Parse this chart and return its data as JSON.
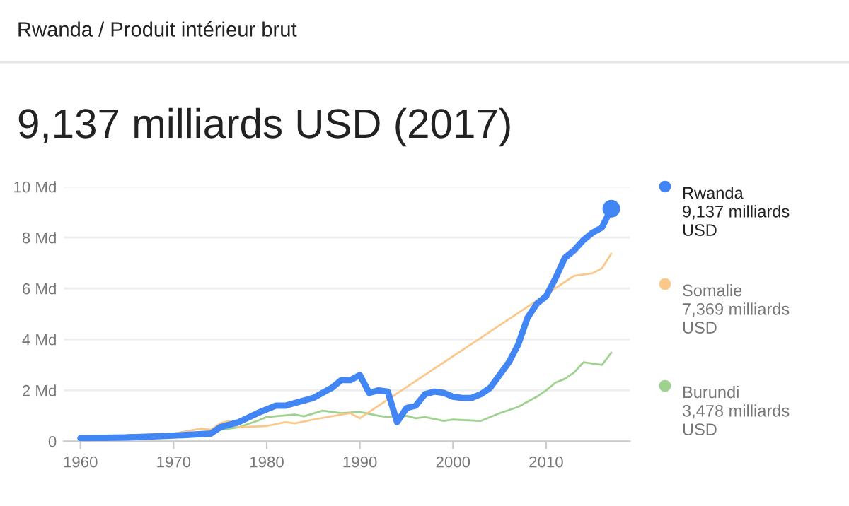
{
  "chart_data": {
    "type": "line",
    "subtitle": "Rwanda / Produit intérieur brut",
    "title": "9,137 milliards USD (2017)",
    "x": [
      1960,
      1965,
      1970,
      1974,
      1975,
      1977,
      1979,
      1981,
      1982,
      1984,
      1985,
      1987,
      1988,
      1989,
      1990,
      1991,
      1992,
      1993,
      1994,
      1995,
      1996,
      1997,
      1998,
      1999,
      2000,
      2001,
      2002,
      2003,
      2004,
      2005,
      2006,
      2007,
      2008,
      2009,
      2010,
      2011,
      2012,
      2013,
      2014,
      2015,
      2016,
      2017
    ],
    "series": [
      {
        "name": "Rwanda",
        "color": "#4285f4",
        "values": [
          0.12,
          0.15,
          0.22,
          0.3,
          0.55,
          0.75,
          1.1,
          1.4,
          1.4,
          1.6,
          1.7,
          2.1,
          2.4,
          2.4,
          2.6,
          1.9,
          2.0,
          1.95,
          0.75,
          1.3,
          1.4,
          1.85,
          1.95,
          1.9,
          1.75,
          1.7,
          1.7,
          1.85,
          2.1,
          2.6,
          3.1,
          3.8,
          4.85,
          5.4,
          5.7,
          6.4,
          7.2,
          7.5,
          7.9,
          8.2,
          8.4,
          9.137
        ]
      },
      {
        "name": "Somalie",
        "color": "#fbc88a",
        "x": [
          1970,
          1973,
          1974,
          1975,
          1976,
          1977,
          1980,
          1982,
          1983,
          1985,
          1988,
          1989,
          1990,
          1991,
          2013,
          2015,
          2016,
          2017
        ],
        "values": [
          0.3,
          0.5,
          0.45,
          0.7,
          0.8,
          0.55,
          0.6,
          0.75,
          0.7,
          0.85,
          1.05,
          1.1,
          0.9,
          1.15,
          6.5,
          6.6,
          6.8,
          7.369
        ]
      },
      {
        "name": "Burundi",
        "color": "#9fd18f",
        "x": [
          1965,
          1970,
          1974,
          1975,
          1977,
          1979,
          1980,
          1983,
          1984,
          1986,
          1988,
          1990,
          1992,
          1993,
          1995,
          1996,
          1997,
          1999,
          2000,
          2003,
          2005,
          2007,
          2009,
          2010,
          2011,
          2012,
          2013,
          2014,
          2016,
          2017
        ],
        "values": [
          0.25,
          0.25,
          0.35,
          0.45,
          0.55,
          0.8,
          0.95,
          1.05,
          0.98,
          1.2,
          1.1,
          1.15,
          1.0,
          0.95,
          1.0,
          0.9,
          0.95,
          0.8,
          0.85,
          0.8,
          1.1,
          1.35,
          1.75,
          2.0,
          2.3,
          2.45,
          2.7,
          3.1,
          3.0,
          3.478
        ]
      }
    ],
    "annotations": [
      "9,137 milliards USD",
      "7,369 milliards USD",
      "3,478 milliards USD"
    ],
    "xlim": [
      1958.2,
      2019
    ],
    "xticks": [
      1960,
      1970,
      1980,
      1990,
      2000,
      2010
    ],
    "ylim": [
      0,
      10
    ],
    "yticks": [
      0,
      {
        "value": 2,
        "label": "2 Md"
      },
      {
        "value": 4,
        "label": "4 Md"
      },
      {
        "value": 6,
        "label": "6 Md"
      },
      {
        "value": 8,
        "label": "8 Md"
      },
      {
        "value": 10,
        "label": "10 Md"
      }
    ],
    "grid": "y",
    "legend": "right",
    "marker": "none",
    "line_style": "solid"
  }
}
